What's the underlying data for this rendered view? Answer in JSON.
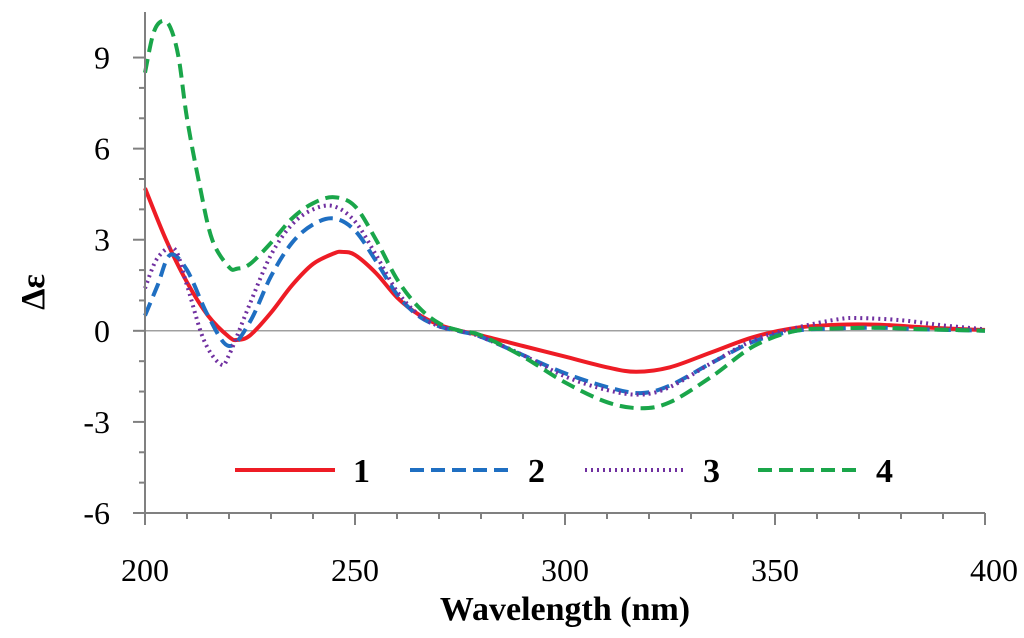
{
  "chart_data": {
    "type": "line",
    "xlabel": "Wavelength (nm)",
    "ylabel": "Δε",
    "xlim": [
      200,
      400
    ],
    "ylim": [
      -6,
      10.5
    ],
    "xticks": [
      200,
      250,
      300,
      350,
      400
    ],
    "xtick_labels": [
      "200",
      "250",
      "300",
      "350",
      "400"
    ],
    "yticks": [
      -6,
      -3,
      0,
      3,
      6,
      9
    ],
    "ytick_labels": [
      "-6",
      "-3",
      "0",
      "3",
      "6",
      "9"
    ],
    "zero_line": true,
    "legend_position": "bottom-center",
    "series": [
      {
        "name": "1",
        "color": "#ee1c25",
        "style": "solid",
        "x": [
          200,
          205,
          210,
          215,
          220,
          222,
          225,
          230,
          235,
          240,
          245,
          247,
          250,
          255,
          260,
          265,
          270,
          275,
          280,
          290,
          300,
          310,
          317,
          325,
          335,
          345,
          355,
          365,
          375,
          385,
          395,
          400
        ],
        "y": [
          4.7,
          3.0,
          1.6,
          0.5,
          -0.2,
          -0.3,
          -0.15,
          0.6,
          1.5,
          2.2,
          2.55,
          2.6,
          2.5,
          1.9,
          1.1,
          0.55,
          0.2,
          0.0,
          -0.15,
          -0.5,
          -0.85,
          -1.2,
          -1.35,
          -1.2,
          -0.7,
          -0.2,
          0.1,
          0.2,
          0.2,
          0.12,
          0.05,
          0.03
        ]
      },
      {
        "name": "2",
        "color": "#1f6fc2",
        "style": "dashed",
        "x": [
          200,
          203,
          206,
          210,
          215,
          220,
          225,
          230,
          235,
          240,
          245,
          250,
          255,
          260,
          265,
          270,
          275,
          280,
          290,
          300,
          310,
          318,
          325,
          335,
          345,
          355,
          365,
          375,
          385,
          395,
          400
        ],
        "y": [
          0.5,
          1.5,
          2.5,
          2.0,
          0.5,
          -0.5,
          0.3,
          1.8,
          2.9,
          3.5,
          3.7,
          3.3,
          2.3,
          1.2,
          0.5,
          0.15,
          -0.02,
          -0.2,
          -0.8,
          -1.4,
          -1.85,
          -2.05,
          -1.8,
          -1.05,
          -0.35,
          0.0,
          0.08,
          0.1,
          0.05,
          0.02,
          0.0
        ]
      },
      {
        "name": "3",
        "color": "#7030a0",
        "style": "dotted",
        "x": [
          200,
          203,
          207,
          210,
          214,
          218,
          220,
          225,
          230,
          235,
          240,
          245,
          250,
          255,
          260,
          265,
          270,
          275,
          280,
          290,
          300,
          310,
          318,
          325,
          335,
          345,
          355,
          365,
          370,
          380,
          390,
          400
        ],
        "y": [
          1.4,
          2.4,
          2.7,
          1.5,
          -0.3,
          -1.1,
          -0.8,
          0.9,
          2.5,
          3.5,
          4.0,
          4.1,
          3.6,
          2.5,
          1.3,
          0.55,
          0.15,
          0.0,
          -0.2,
          -0.8,
          -1.5,
          -1.95,
          -2.1,
          -1.85,
          -1.05,
          -0.3,
          0.1,
          0.38,
          0.42,
          0.35,
          0.18,
          0.05
        ]
      },
      {
        "name": "4",
        "color": "#1aa64a",
        "style": "dashed",
        "x": [
          200,
          202,
          204,
          206,
          208,
          210,
          213,
          216,
          220,
          222,
          225,
          230,
          235,
          240,
          245,
          250,
          255,
          260,
          265,
          270,
          275,
          280,
          290,
          300,
          310,
          318,
          325,
          335,
          345,
          355,
          365,
          375,
          385,
          395,
          400
        ],
        "y": [
          8.5,
          9.8,
          10.2,
          10.0,
          9.0,
          7.0,
          4.8,
          3.0,
          2.1,
          2.05,
          2.2,
          2.9,
          3.7,
          4.2,
          4.4,
          4.1,
          3.0,
          1.7,
          0.8,
          0.25,
          0.0,
          -0.15,
          -0.85,
          -1.7,
          -2.35,
          -2.55,
          -2.35,
          -1.5,
          -0.5,
          0.0,
          0.08,
          0.1,
          0.05,
          0.02,
          0.0
        ]
      }
    ]
  }
}
